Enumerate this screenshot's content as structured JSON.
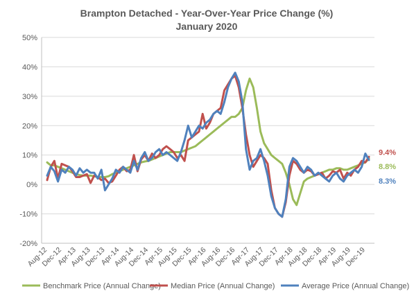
{
  "chart_data": {
    "type": "line",
    "title": "Brampton Detached - Year-Over-Year Price Change (%)",
    "subtitle": "January 2020",
    "ylim": [
      -20,
      50
    ],
    "y_ticks": [
      "-20%",
      "-10%",
      "0%",
      "10%",
      "20%",
      "30%",
      "40%",
      "50%"
    ],
    "y_tick_values": [
      -20,
      -10,
      0,
      10,
      20,
      30,
      40,
      50
    ],
    "x": [
      "Aug-12",
      "Sep-12",
      "Oct-12",
      "Nov-12",
      "Dec-12",
      "Jan-13",
      "Feb-13",
      "Mar-13",
      "Apr-13",
      "May-13",
      "Jun-13",
      "Jul-13",
      "Aug-13",
      "Sep-13",
      "Oct-13",
      "Nov-13",
      "Dec-13",
      "Jan-14",
      "Feb-14",
      "Mar-14",
      "Apr-14",
      "May-14",
      "Jun-14",
      "Jul-14",
      "Aug-14",
      "Sep-14",
      "Oct-14",
      "Nov-14",
      "Dec-14",
      "Jan-15",
      "Feb-15",
      "Mar-15",
      "Apr-15",
      "May-15",
      "Jun-15",
      "Jul-15",
      "Aug-15",
      "Sep-15",
      "Oct-15",
      "Nov-15",
      "Dec-15",
      "Jan-16",
      "Feb-16",
      "Mar-16",
      "Apr-16",
      "May-16",
      "Jun-16",
      "Jul-16",
      "Aug-16",
      "Sep-16",
      "Oct-16",
      "Nov-16",
      "Dec-16",
      "Jan-17",
      "Feb-17",
      "Mar-17",
      "Apr-17",
      "May-17",
      "Jun-17",
      "Jul-17",
      "Aug-17",
      "Sep-17",
      "Oct-17",
      "Nov-17",
      "Dec-17",
      "Jan-18",
      "Feb-18",
      "Mar-18",
      "Apr-18",
      "May-18",
      "Jun-18",
      "Jul-18",
      "Aug-18",
      "Sep-18",
      "Oct-18",
      "Nov-18",
      "Dec-18",
      "Jan-19",
      "Feb-19",
      "Mar-19",
      "Apr-19",
      "May-19",
      "Jun-19",
      "Jul-19",
      "Aug-19",
      "Sep-19",
      "Oct-19",
      "Nov-19",
      "Dec-19",
      "Jan-20"
    ],
    "x_tick_labels": [
      "Aug-12",
      "Dec-12",
      "Apr-13",
      "Aug-13",
      "Dec-13",
      "Apr-14",
      "Aug-14",
      "Dec-14",
      "Apr-15",
      "Aug-15",
      "Dec-15",
      "Apr-16",
      "Aug-16",
      "Dec-16",
      "Apr-17",
      "Aug-17",
      "Dec-17",
      "Apr-18",
      "Aug-18",
      "Dec-18",
      "Apr-19",
      "Aug-19",
      "Dec-19"
    ],
    "series": [
      {
        "name": "Benchmark Price (Annual Change)",
        "color": "#9bbb59",
        "end_label": "8.8%",
        "values": [
          7.5,
          6.5,
          6.5,
          6,
          5.5,
          5,
          4.5,
          4,
          3.5,
          3.2,
          3,
          3,
          3,
          2.8,
          2.5,
          2.5,
          2.5,
          2.8,
          3.5,
          4,
          4.5,
          5,
          5.5,
          6,
          6.5,
          7,
          7.5,
          7.8,
          8,
          8.5,
          9,
          9.5,
          10,
          10.5,
          11,
          11,
          11,
          11,
          11.5,
          12,
          12.5,
          13,
          14,
          15,
          16,
          17,
          18,
          19,
          20,
          21,
          22,
          23,
          23,
          24,
          26,
          32,
          36,
          33,
          26,
          18,
          14,
          12,
          10,
          9,
          8,
          7,
          4,
          0,
          -5,
          -7,
          -3,
          1,
          2,
          2.5,
          3,
          3.5,
          4,
          4.5,
          5,
          5,
          5.5,
          5.5,
          5,
          5,
          5.5,
          6,
          6.5,
          7,
          7.5,
          8.8
        ]
      },
      {
        "name": "Median Price (Annual Change)",
        "color": "#c0504d",
        "end_label": "9.4%",
        "values": [
          1.5,
          6,
          8,
          2,
          7,
          6.5,
          6,
          4.5,
          2.5,
          2.5,
          3,
          3.5,
          0.5,
          3,
          2.5,
          1.5,
          2,
          0.5,
          1,
          3,
          5,
          6,
          4.5,
          5,
          10,
          4.5,
          8.5,
          10,
          8,
          10.5,
          9,
          10,
          12,
          13,
          12,
          11,
          9,
          10,
          8,
          15,
          16,
          17,
          18,
          24,
          19,
          21,
          24,
          25,
          26,
          32,
          34,
          36,
          37,
          33,
          26,
          17,
          10,
          6,
          8,
          10,
          9,
          7,
          -2,
          -8,
          -10,
          -11,
          -6,
          3,
          8,
          7,
          5,
          4,
          5,
          4.5,
          3,
          3.5,
          4,
          2,
          3,
          4.5,
          4,
          5,
          2,
          4,
          3,
          5,
          6,
          8,
          7.5,
          9.4
        ]
      },
      {
        "name": "Average Price (Annual Change)",
        "color": "#4f81bd",
        "end_label": "8.3%",
        "values": [
          3,
          6,
          4.5,
          1,
          5,
          4,
          6,
          5,
          3,
          5.5,
          4,
          5,
          4,
          4,
          2,
          5,
          -2,
          0,
          2,
          5,
          4,
          6,
          5,
          4,
          8,
          5,
          9,
          11,
          8,
          9,
          11,
          12,
          10,
          11,
          10,
          9,
          8,
          11,
          15,
          20,
          16,
          18,
          20,
          19,
          21,
          22,
          24,
          25,
          24,
          28,
          33,
          36,
          38,
          35,
          28,
          12,
          5,
          8,
          9,
          12,
          8,
          3,
          -4,
          -8,
          -10,
          -11,
          -5,
          6,
          9,
          8,
          6,
          4,
          6,
          5,
          3,
          4,
          3,
          2,
          1,
          3,
          4,
          2,
          1,
          3,
          4,
          5,
          4,
          6,
          10.5,
          8.3
        ]
      }
    ],
    "legend": {
      "placement": "bottom"
    },
    "grid": true
  }
}
